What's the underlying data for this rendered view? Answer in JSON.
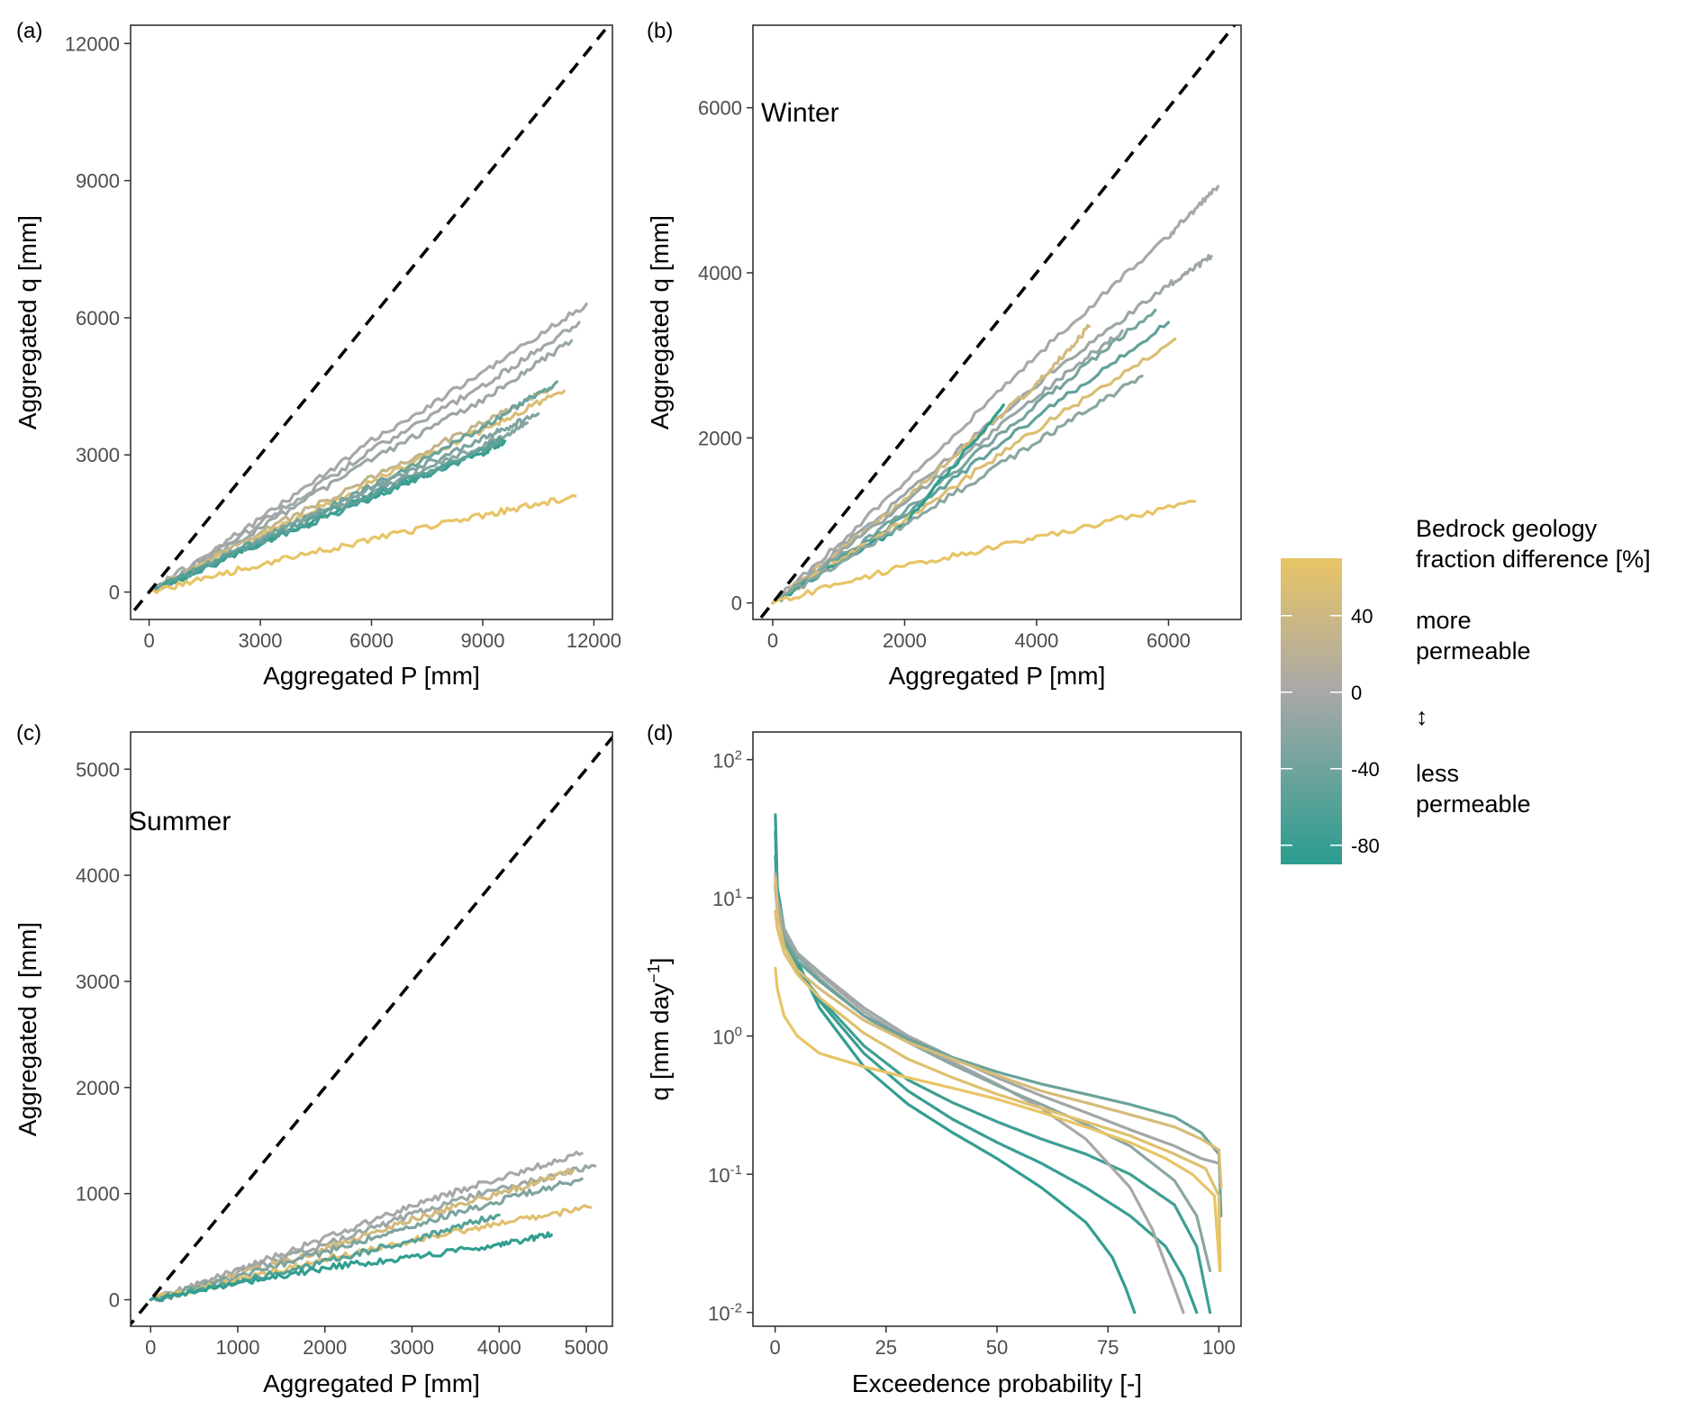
{
  "colors": {
    "more_permeable": "#E8C465",
    "neutral": "#A8A8A8",
    "less_permeable": "#2A9D8F",
    "one_to_one": "#000000"
  },
  "chart_data": [
    {
      "panel": "(a)",
      "type": "line",
      "season": "",
      "xlabel": "Aggregated P [mm]",
      "ylabel": "Aggregated q [mm]",
      "xlim": [
        -500,
        12500
      ],
      "ylim": [
        -600,
        12400
      ],
      "xticks": [
        0,
        3000,
        6000,
        9000,
        12000
      ],
      "yticks": [
        0,
        3000,
        6000,
        9000,
        12000
      ],
      "xtick_labels": [
        "0",
        "3000",
        "6000",
        "9000",
        "12000"
      ],
      "ytick_labels": [
        "0",
        "3000",
        "6000",
        "9000",
        "12000"
      ],
      "one_to_one_line": true,
      "series": [
        {
          "color_value": 0,
          "x": [
            0,
            3000,
            6000,
            9000,
            11800
          ],
          "y": [
            0,
            1600,
            3300,
            4800,
            6300
          ]
        },
        {
          "color_value": -5,
          "x": [
            0,
            3000,
            6000,
            9000,
            11600
          ],
          "y": [
            0,
            1500,
            3100,
            4500,
            5900
          ]
        },
        {
          "color_value": -10,
          "x": [
            0,
            3000,
            6000,
            9000,
            11400
          ],
          "y": [
            0,
            1400,
            2900,
            4200,
            5500
          ]
        },
        {
          "color_value": 30,
          "x": [
            0,
            3000,
            6000,
            9000,
            10900
          ],
          "y": [
            0,
            1300,
            2500,
            3700,
            4500
          ]
        },
        {
          "color_value": 55,
          "x": [
            0,
            3000,
            6000,
            9000,
            11200
          ],
          "y": [
            0,
            1200,
            2400,
            3550,
            4400
          ]
        },
        {
          "color_value": -45,
          "x": [
            0,
            3000,
            6000,
            9000,
            11000
          ],
          "y": [
            0,
            1150,
            2300,
            3600,
            4600
          ]
        },
        {
          "color_value": -30,
          "x": [
            0,
            3000,
            6000,
            9000,
            10500
          ],
          "y": [
            0,
            1150,
            2250,
            3350,
            3900
          ]
        },
        {
          "color_value": -25,
          "x": [
            0,
            3000,
            6000,
            9000,
            10200
          ],
          "y": [
            0,
            1100,
            2200,
            3200,
            3700
          ]
        },
        {
          "color_value": -85,
          "x": [
            0,
            3000,
            6000,
            9000,
            9600
          ],
          "y": [
            0,
            1050,
            2100,
            3050,
            3300
          ]
        },
        {
          "color_value": -75,
          "x": [
            0,
            3000,
            6000,
            8500
          ],
          "y": [
            0,
            1050,
            2050,
            2900
          ]
        },
        {
          "color_value": -55,
          "x": [
            0,
            3000,
            6000,
            9000,
            9500
          ],
          "y": [
            0,
            1100,
            2150,
            3100,
            3350
          ]
        },
        {
          "color_value": 70,
          "x": [
            0,
            3000,
            6000,
            9000,
            11500
          ],
          "y": [
            0,
            600,
            1150,
            1680,
            2100
          ]
        }
      ]
    },
    {
      "panel": "(b)",
      "type": "line",
      "season": "Winter",
      "xlabel": "Aggregated P [mm]",
      "ylabel": "Aggregated q [mm]",
      "xlim": [
        -300,
        7100
      ],
      "ylim": [
        -200,
        7000
      ],
      "xticks": [
        0,
        2000,
        4000,
        6000
      ],
      "yticks": [
        0,
        2000,
        4000,
        6000
      ],
      "xtick_labels": [
        "0",
        "2000",
        "4000",
        "6000"
      ],
      "ytick_labels": [
        "0",
        "2000",
        "4000",
        "6000"
      ],
      "one_to_one_line": true,
      "series": [
        {
          "color_value": 0,
          "x": [
            0,
            2000,
            4000,
            6000,
            6750
          ],
          "y": [
            0,
            1450,
            3000,
            4450,
            5050
          ]
        },
        {
          "color_value": -8,
          "x": [
            0,
            2000,
            4000,
            6000,
            6650
          ],
          "y": [
            0,
            1300,
            2650,
            3850,
            4200
          ]
        },
        {
          "color_value": 45,
          "x": [
            0,
            2000,
            4000,
            4800
          ],
          "y": [
            0,
            1250,
            2650,
            3350
          ]
        },
        {
          "color_value": -12,
          "x": [
            0,
            2000,
            4000,
            5300
          ],
          "y": [
            0,
            1200,
            2500,
            3300
          ]
        },
        {
          "color_value": -35,
          "x": [
            0,
            2000,
            4000,
            5800
          ],
          "y": [
            0,
            1100,
            2400,
            3550
          ]
        },
        {
          "color_value": -50,
          "x": [
            0,
            2000,
            4000,
            6000
          ],
          "y": [
            0,
            1050,
            2250,
            3400
          ]
        },
        {
          "color_value": 55,
          "x": [
            0,
            2000,
            4000,
            6100
          ],
          "y": [
            0,
            1000,
            2100,
            3200
          ]
        },
        {
          "color_value": -85,
          "x": [
            0,
            2000,
            3500
          ],
          "y": [
            0,
            950,
            2400
          ]
        },
        {
          "color_value": -20,
          "x": [
            0,
            2000,
            4000,
            5600
          ],
          "y": [
            0,
            950,
            1950,
            2750
          ]
        },
        {
          "color_value": 70,
          "x": [
            0,
            2000,
            4000,
            6400
          ],
          "y": [
            0,
            450,
            780,
            1230
          ]
        }
      ]
    },
    {
      "panel": "(c)",
      "type": "line",
      "season": "Summer",
      "xlabel": "Aggregated P [mm]",
      "ylabel": "Aggregated q [mm]",
      "xlim": [
        -230,
        5300
      ],
      "ylim": [
        -250,
        5350
      ],
      "xticks": [
        0,
        1000,
        2000,
        3000,
        4000,
        5000
      ],
      "yticks": [
        0,
        1000,
        2000,
        3000,
        4000,
        5000
      ],
      "xtick_labels": [
        "0",
        "1000",
        "2000",
        "3000",
        "4000",
        "5000"
      ],
      "ytick_labels": [
        "0",
        "1000",
        "2000",
        "3000",
        "4000",
        "5000"
      ],
      "one_to_one_line": true,
      "series": [
        {
          "color_value": 0,
          "x": [
            0,
            1000,
            2000,
            3000,
            4000,
            4950
          ],
          "y": [
            0,
            280,
            580,
            880,
            1150,
            1380
          ]
        },
        {
          "color_value": -10,
          "x": [
            0,
            1000,
            2000,
            3000,
            4000,
            5100
          ],
          "y": [
            0,
            250,
            520,
            800,
            1050,
            1260
          ]
        },
        {
          "color_value": 45,
          "x": [
            0,
            1000,
            2000,
            3000,
            4000,
            4850
          ],
          "y": [
            0,
            230,
            480,
            760,
            1000,
            1220
          ]
        },
        {
          "color_value": -30,
          "x": [
            0,
            1000,
            2000,
            3000,
            4000,
            4950
          ],
          "y": [
            0,
            220,
            450,
            700,
            930,
            1140
          ]
        },
        {
          "color_value": 60,
          "x": [
            0,
            1000,
            2000,
            3000,
            4000,
            5050
          ],
          "y": [
            0,
            180,
            380,
            560,
            720,
            870
          ]
        },
        {
          "color_value": -60,
          "x": [
            0,
            1000,
            2000,
            3000,
            4000
          ],
          "y": [
            0,
            170,
            360,
            560,
            800
          ]
        },
        {
          "color_value": -85,
          "x": [
            0,
            1000,
            2000,
            3000,
            4000,
            4600
          ],
          "y": [
            0,
            150,
            300,
            400,
            520,
            610
          ]
        }
      ]
    },
    {
      "panel": "(d)",
      "type": "line",
      "season": "",
      "xlabel": "Exceedence probability [-]",
      "ylabel": "q [mm day",
      "ylabel_superscript": "−1",
      "ylabel_suffix": "]",
      "xlim": [
        -5,
        105
      ],
      "ylim_log10": [
        -2.1,
        2.2
      ],
      "y_scale": "log",
      "xticks": [
        0,
        25,
        50,
        75,
        100
      ],
      "yticks": [
        0.01,
        0.1,
        1,
        10,
        100
      ],
      "xtick_labels": [
        "0",
        "25",
        "50",
        "75",
        "100"
      ],
      "ytick_base": "10",
      "ytick_exponents": [
        "-2",
        "-1",
        "0",
        "1",
        "2"
      ],
      "series": [
        {
          "color_value": -85,
          "x": [
            0.05,
            0.5,
            2,
            5,
            10,
            20,
            30,
            40,
            50,
            60,
            70,
            76,
            79,
            81
          ],
          "y": [
            40,
            12,
            6,
            3.5,
            1.6,
            0.6,
            0.32,
            0.2,
            0.13,
            0.08,
            0.045,
            0.025,
            0.015,
            0.01
          ]
        },
        {
          "color_value": -80,
          "x": [
            0.05,
            0.5,
            2,
            5,
            10,
            20,
            30,
            40,
            50,
            60,
            70,
            80,
            88,
            92,
            95
          ],
          "y": [
            30,
            11,
            5.5,
            3.2,
            1.8,
            0.75,
            0.4,
            0.25,
            0.17,
            0.12,
            0.08,
            0.05,
            0.03,
            0.018,
            0.01
          ]
        },
        {
          "color_value": -75,
          "x": [
            0.05,
            0.5,
            2,
            5,
            10,
            20,
            30,
            40,
            50,
            60,
            70,
            80,
            90,
            95,
            98
          ],
          "y": [
            20,
            10,
            5,
            3,
            1.9,
            0.85,
            0.48,
            0.33,
            0.24,
            0.18,
            0.14,
            0.1,
            0.06,
            0.03,
            0.01
          ]
        },
        {
          "color_value": 0,
          "x": [
            0.05,
            0.5,
            2,
            5,
            10,
            20,
            30,
            40,
            50,
            60,
            70,
            80,
            85,
            90,
            92
          ],
          "y": [
            15,
            10,
            6,
            4,
            2.8,
            1.5,
            0.95,
            0.65,
            0.45,
            0.3,
            0.18,
            0.08,
            0.04,
            0.015,
            0.01
          ]
        },
        {
          "color_value": -20,
          "x": [
            0.05,
            0.5,
            2,
            5,
            10,
            20,
            30,
            40,
            50,
            60,
            70,
            80,
            90,
            95,
            98
          ],
          "y": [
            14,
            9,
            5.5,
            3.8,
            2.6,
            1.4,
            0.9,
            0.62,
            0.44,
            0.32,
            0.23,
            0.16,
            0.09,
            0.05,
            0.02
          ]
        },
        {
          "color_value": -5,
          "x": [
            0.05,
            0.5,
            2,
            5,
            10,
            20,
            30,
            40,
            50,
            60,
            70,
            80,
            90,
            96,
            100
          ],
          "y": [
            13,
            9,
            5.8,
            4,
            2.9,
            1.6,
            1.0,
            0.7,
            0.5,
            0.37,
            0.28,
            0.21,
            0.16,
            0.13,
            0.12
          ]
        },
        {
          "color_value": -45,
          "x": [
            0.05,
            0.5,
            2,
            5,
            10,
            20,
            30,
            40,
            50,
            60,
            70,
            80,
            90,
            96,
            100,
            100.5
          ],
          "y": [
            12,
            8,
            5,
            3.5,
            2.5,
            1.4,
            0.95,
            0.7,
            0.55,
            0.45,
            0.38,
            0.32,
            0.26,
            0.2,
            0.14,
            0.05
          ]
        },
        {
          "color_value": 50,
          "x": [
            0.05,
            0.5,
            2,
            5,
            10,
            20,
            30,
            40,
            50,
            60,
            70,
            80,
            90,
            96,
            100,
            100.5
          ],
          "y": [
            14,
            8,
            4.5,
            3,
            2.2,
            1.3,
            0.9,
            0.68,
            0.52,
            0.4,
            0.33,
            0.27,
            0.22,
            0.18,
            0.15,
            0.08
          ]
        },
        {
          "color_value": 60,
          "x": [
            0.05,
            0.5,
            2,
            5,
            10,
            20,
            30,
            40,
            50,
            60,
            70,
            80,
            90,
            97,
            100,
            100.3
          ],
          "y": [
            8,
            6,
            4,
            2.8,
            1.9,
            1.05,
            0.68,
            0.5,
            0.38,
            0.3,
            0.24,
            0.19,
            0.14,
            0.11,
            0.07,
            0.02
          ]
        },
        {
          "color_value": 70,
          "x": [
            0.05,
            0.5,
            2,
            5,
            10,
            20,
            30,
            40,
            50,
            60,
            70,
            80,
            88,
            94,
            99,
            100.2
          ],
          "y": [
            3.1,
            2.2,
            1.4,
            1.0,
            0.75,
            0.6,
            0.5,
            0.42,
            0.35,
            0.28,
            0.22,
            0.17,
            0.13,
            0.1,
            0.07,
            0.02
          ]
        }
      ]
    }
  ],
  "panels": {
    "a": {
      "tag": "(a)",
      "season": ""
    },
    "b": {
      "tag": "(b)",
      "season": "Winter"
    },
    "c": {
      "tag": "(c)",
      "season": "Summer"
    },
    "d": {
      "tag": "(d)",
      "season": ""
    }
  },
  "legend": {
    "title_line1": "Bedrock geology",
    "title_line2": "fraction difference [%]",
    "ticks": [
      "40",
      "0",
      "-40",
      "-80"
    ],
    "tick_values": [
      40,
      0,
      -40,
      -80
    ],
    "range": [
      -90,
      70
    ],
    "more_line1": "more",
    "more_line2": "permeable",
    "arrow": "↕",
    "less_line1": "less",
    "less_line2": "permeable"
  }
}
